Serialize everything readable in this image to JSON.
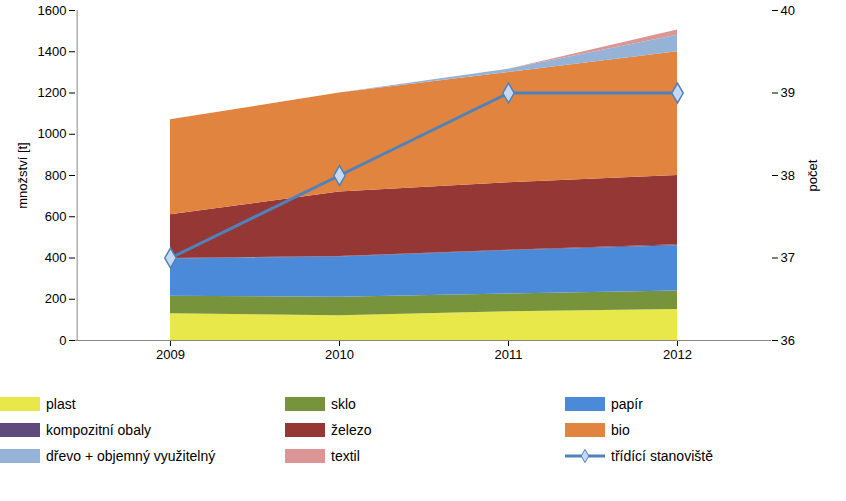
{
  "chart_data": {
    "type": "area",
    "stacked": true,
    "categories": [
      "2009",
      "2010",
      "2011",
      "2012"
    ],
    "y_label": "množství [t]",
    "y2_label": "počet",
    "ylim": [
      0,
      1600
    ],
    "yticks": [
      0,
      200,
      400,
      600,
      800,
      1000,
      1200,
      1400,
      1600
    ],
    "y2lim": [
      36,
      40
    ],
    "y2ticks": [
      36,
      37,
      38,
      39,
      40
    ],
    "legend": "bottom",
    "series": [
      {
        "name": "plast",
        "color": "#e8e84a",
        "values": [
          130,
          120,
          140,
          150
        ]
      },
      {
        "name": "sklo",
        "color": "#77933c",
        "values": [
          85,
          90,
          85,
          90
        ]
      },
      {
        "name": "papír",
        "color": "#4a8ad8",
        "values": [
          180,
          195,
          210,
          220
        ]
      },
      {
        "name": "kompozitní obaly",
        "color": "#604a7b",
        "values": [
          2,
          2,
          3,
          4
        ]
      },
      {
        "name": "železo",
        "color": "#953735",
        "values": [
          213,
          313,
          327,
          336
        ]
      },
      {
        "name": "bio",
        "color": "#e0843f",
        "values": [
          460,
          480,
          535,
          600
        ]
      },
      {
        "name": "dřevo + objemný využitelný",
        "color": "#95b3d7",
        "values": [
          0,
          0,
          15,
          80
        ]
      },
      {
        "name": "textil",
        "color": "#d99694",
        "values": [
          0,
          0,
          0,
          25
        ]
      },
      {
        "name": "třídící stanoviště",
        "type": "line",
        "axis": "y2",
        "marker": "diamond",
        "color": "#4f81bd",
        "values": [
          37,
          38,
          39,
          39
        ]
      }
    ]
  }
}
